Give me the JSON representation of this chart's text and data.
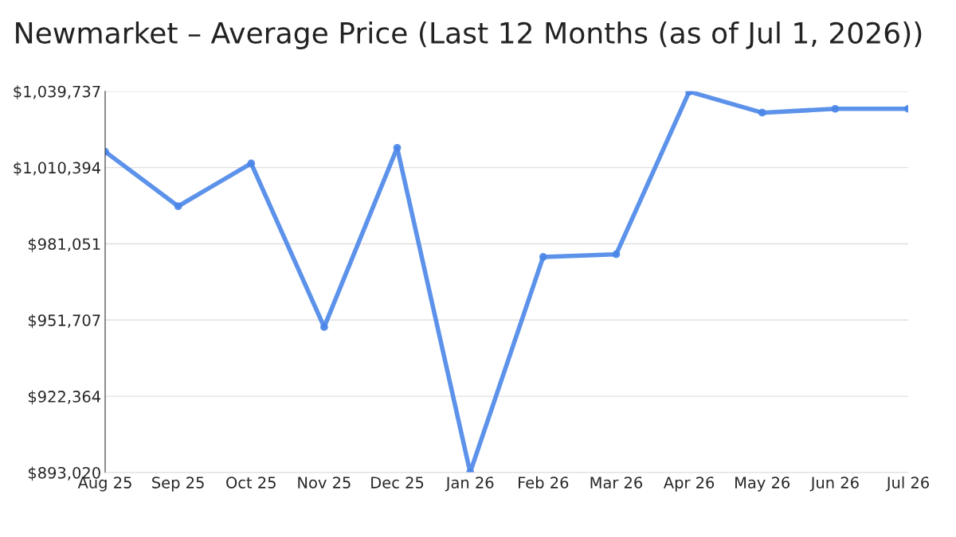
{
  "chart_data": {
    "type": "line",
    "title": "Newmarket – Average Price (Last 12 Months (as of Jul 1, 2026))",
    "categories": [
      "Aug 25",
      "Sep 25",
      "Oct 25",
      "Nov 25",
      "Dec 25",
      "Jan 26",
      "Feb 26",
      "Mar 26",
      "Apr 26",
      "May 26",
      "Jun 26",
      "Jul 26"
    ],
    "series": [
      {
        "color": "#4a86e8",
        "values": [
          1016500,
          995500,
          1012000,
          949000,
          1018000,
          893100,
          976000,
          977000,
          1039600,
          1031500,
          1033000,
          1033000
        ]
      }
    ],
    "ylim": [
      893020,
      1039737
    ],
    "yticks": [
      {
        "value": 893020,
        "label": "$893,020"
      },
      {
        "value": 922364,
        "label": "$922,364"
      },
      {
        "value": 951707,
        "label": "$951,707"
      },
      {
        "value": 981051,
        "label": "$981,051"
      },
      {
        "value": 1010394,
        "label": "$1,010,394"
      },
      {
        "value": 1039737,
        "label": "$1,039,737"
      }
    ],
    "grid": "y",
    "marker": "circle",
    "line_style": "solid",
    "legend": false
  }
}
